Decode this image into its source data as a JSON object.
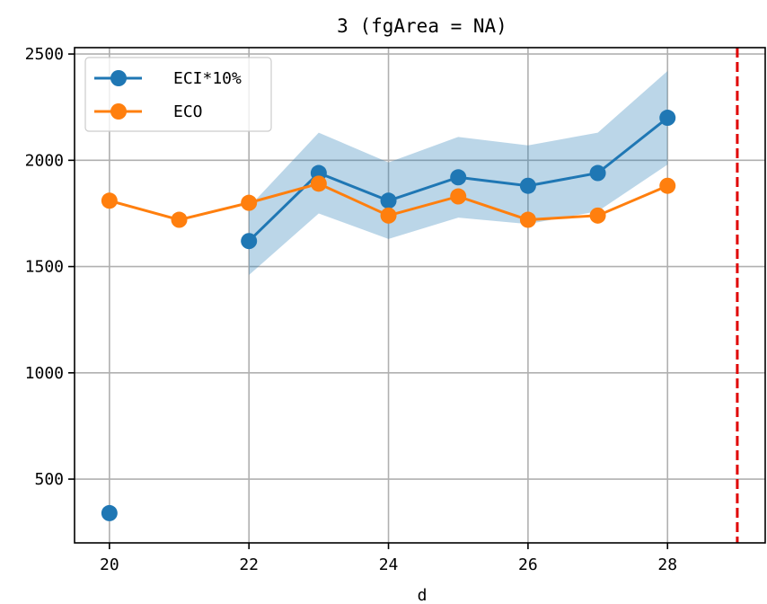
{
  "chart_data": {
    "type": "line",
    "title": "3 (fgArea = NA)",
    "xlabel": "d",
    "ylabel": "",
    "xlim": [
      19.5,
      29.4
    ],
    "ylim": [
      200,
      2530
    ],
    "xticks": [
      20,
      22,
      24,
      26,
      28
    ],
    "yticks": [
      500,
      1000,
      1500,
      2000,
      2500
    ],
    "grid": true,
    "legend_position": "top-left",
    "reference_line": {
      "x": 29,
      "color": "#e00000",
      "style": "dashed"
    },
    "series": [
      {
        "name": "ECI*10%",
        "color": "#1f77b4",
        "points": [
          {
            "x": 20,
            "y": 340
          },
          {
            "x": 22,
            "y": 1620
          },
          {
            "x": 23,
            "y": 1940
          },
          {
            "x": 24,
            "y": 1810
          },
          {
            "x": 25,
            "y": 1920
          },
          {
            "x": 26,
            "y": 1880
          },
          {
            "x": 27,
            "y": 1940
          },
          {
            "x": 28,
            "y": 2200
          }
        ],
        "line_segments": [
          [
            22,
            23,
            24,
            25,
            26,
            27,
            28
          ]
        ],
        "band": {
          "color": "#1f77b4",
          "x": [
            22,
            23,
            24,
            25,
            26,
            27,
            28
          ],
          "lower": [
            1460,
            1750,
            1630,
            1730,
            1700,
            1760,
            1980
          ],
          "upper": [
            1780,
            2130,
            1990,
            2110,
            2070,
            2130,
            2420
          ]
        }
      },
      {
        "name": "ECO",
        "color": "#ff7f0e",
        "points": [
          {
            "x": 20,
            "y": 1810
          },
          {
            "x": 21,
            "y": 1720
          },
          {
            "x": 22,
            "y": 1800
          },
          {
            "x": 23,
            "y": 1890
          },
          {
            "x": 24,
            "y": 1740
          },
          {
            "x": 25,
            "y": 1830
          },
          {
            "x": 26,
            "y": 1720
          },
          {
            "x": 27,
            "y": 1740
          },
          {
            "x": 28,
            "y": 1880
          }
        ],
        "line_segments": [
          [
            20,
            21,
            22,
            23,
            24,
            25,
            26,
            27,
            28
          ]
        ]
      }
    ]
  }
}
